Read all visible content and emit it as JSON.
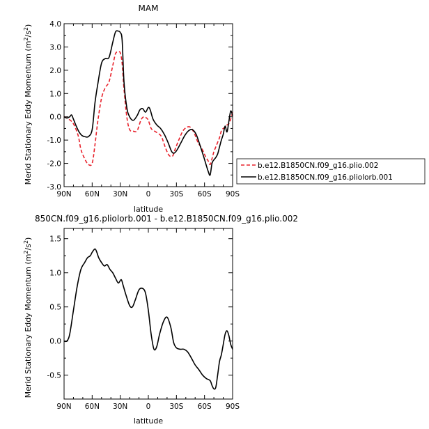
{
  "figure": {
    "top_title": "MAM",
    "bottom_title": "850CN.f09_g16.pliolorb.001 - b.e12.B1850CN.f09_g16.plio.002"
  },
  "chart_data": [
    {
      "type": "line",
      "title": "MAM",
      "xlabel": "latitude",
      "ylabel": "Merid Stationary Eddy Momentum (m²/s²)",
      "xlim": [
        90,
        -90
      ],
      "ylim": [
        -3.0,
        4.0
      ],
      "x_ticks": [
        90,
        60,
        30,
        0,
        -30,
        -60,
        -90
      ],
      "x_tick_labels": [
        "90N",
        "60N",
        "30N",
        "0",
        "30S",
        "60S",
        "90S"
      ],
      "y_ticks": [
        -3.0,
        -2.0,
        -1.0,
        0.0,
        1.0,
        2.0,
        3.0,
        4.0
      ],
      "y_tick_labels": [
        "-3.0",
        "-2.0",
        "-1.0",
        "0.0",
        "1.0",
        "2.0",
        "3.0",
        "4.0"
      ],
      "grid": false,
      "legend_position": "outside-right",
      "series": [
        {
          "name": "b.e12.B1850CN.f09_g16.plio.002",
          "color": "#e8202a",
          "dash": "dashed",
          "x": [
            90,
            85,
            80,
            75,
            72,
            68,
            64,
            60,
            57,
            54,
            50,
            46,
            42,
            38,
            35,
            32,
            30,
            28,
            26,
            23,
            20,
            16,
            12,
            8,
            5,
            2,
            0,
            -3,
            -6,
            -10,
            -14,
            -18,
            -22,
            -26,
            -29,
            -33,
            -37,
            -41,
            -45,
            -49,
            -53,
            -57,
            -61,
            -64,
            -66,
            -68,
            -70,
            -72,
            -74,
            -76,
            -78,
            -80,
            -82,
            -84,
            -86,
            -88,
            -90
          ],
          "y": [
            0.0,
            -0.1,
            -0.3,
            -0.8,
            -1.4,
            -1.8,
            -2.05,
            -2.0,
            -1.2,
            -0.2,
            0.8,
            1.25,
            1.5,
            2.2,
            2.72,
            2.78,
            2.75,
            2.3,
            1.2,
            0.0,
            -0.55,
            -0.62,
            -0.6,
            -0.15,
            0.0,
            -0.05,
            -0.15,
            -0.5,
            -0.6,
            -0.7,
            -0.85,
            -1.3,
            -1.65,
            -1.68,
            -1.35,
            -0.95,
            -0.6,
            -0.45,
            -0.45,
            -0.7,
            -1.1,
            -1.35,
            -1.7,
            -1.9,
            -2.05,
            -1.8,
            -1.5,
            -1.3,
            -1.1,
            -0.9,
            -0.6,
            -0.5,
            -0.45,
            -0.35,
            -0.3,
            -0.1,
            0.2
          ]
        },
        {
          "name": "b.e12.B1850CN.f09_g16.pliolorb.001",
          "color": "#000000",
          "dash": "solid",
          "x": [
            90,
            87,
            84,
            82,
            80,
            77,
            74,
            71,
            68,
            64,
            60,
            57,
            54,
            50,
            46,
            42,
            38,
            35,
            32,
            30,
            28,
            26,
            23,
            20,
            16,
            12,
            9,
            6,
            3,
            0,
            -2,
            -5,
            -9,
            -13,
            -17,
            -21,
            -25,
            -28,
            -31,
            -35,
            -39,
            -43,
            -47,
            -51,
            -55,
            -59,
            -62,
            -64,
            -66,
            -68,
            -70,
            -72,
            -74,
            -76,
            -78,
            -80,
            -82,
            -84,
            -86,
            -88,
            -90
          ],
          "y": [
            0.0,
            -0.05,
            0.0,
            0.08,
            -0.1,
            -0.4,
            -0.65,
            -0.8,
            -0.85,
            -0.85,
            -0.55,
            0.6,
            1.4,
            2.3,
            2.5,
            2.55,
            3.2,
            3.65,
            3.68,
            3.62,
            3.3,
            1.5,
            0.4,
            0.0,
            -0.15,
            0.05,
            0.3,
            0.35,
            0.2,
            0.4,
            0.3,
            -0.1,
            -0.35,
            -0.5,
            -0.75,
            -1.1,
            -1.5,
            -1.55,
            -1.4,
            -1.1,
            -0.8,
            -0.6,
            -0.55,
            -0.75,
            -1.2,
            -1.7,
            -2.1,
            -2.35,
            -2.5,
            -2.0,
            -1.85,
            -1.75,
            -1.6,
            -1.3,
            -1.0,
            -0.75,
            -0.4,
            -0.65,
            -0.2,
            0.25,
            0.05
          ]
        }
      ]
    },
    {
      "type": "line",
      "title": "850CN.f09_g16.pliolorb.001 - b.e12.B1850CN.f09_g16.plio.002",
      "xlabel": "latitude",
      "ylabel": "Merid Stationary Eddy Momentum (m²/s²)",
      "xlim": [
        90,
        -90
      ],
      "ylim": [
        -0.85,
        1.65
      ],
      "x_ticks": [
        90,
        60,
        30,
        0,
        -30,
        -60,
        -90
      ],
      "x_tick_labels": [
        "90N",
        "60N",
        "30N",
        "0",
        "30S",
        "60S",
        "90S"
      ],
      "y_ticks": [
        -0.5,
        0.0,
        0.5,
        1.0,
        1.5
      ],
      "y_tick_labels": [
        "-0.5",
        "0.0",
        "0.5",
        "1.0",
        "1.5"
      ],
      "grid": false,
      "series": [
        {
          "color": "#000000",
          "dash": "solid",
          "x": [
            90,
            87,
            84,
            80,
            76,
            72,
            68,
            65,
            62,
            60,
            57,
            55,
            53,
            50,
            47,
            44,
            41,
            38,
            35,
            32,
            29,
            27,
            24,
            20,
            17,
            14,
            10,
            6,
            3,
            0,
            -3,
            -6,
            -9,
            -12,
            -16,
            -20,
            -24,
            -27,
            -30,
            -34,
            -38,
            -42,
            -46,
            -50,
            -54,
            -58,
            -62,
            -66,
            -68,
            -70,
            -72,
            -74,
            -76,
            -78,
            -80,
            -82,
            -84,
            -86,
            -88,
            -90
          ],
          "y": [
            0.0,
            0.0,
            0.1,
            0.45,
            0.8,
            1.05,
            1.15,
            1.22,
            1.25,
            1.3,
            1.35,
            1.3,
            1.22,
            1.15,
            1.1,
            1.12,
            1.05,
            1.0,
            0.92,
            0.85,
            0.9,
            0.82,
            0.68,
            0.52,
            0.5,
            0.6,
            0.75,
            0.77,
            0.7,
            0.45,
            0.1,
            -0.12,
            -0.08,
            0.1,
            0.28,
            0.35,
            0.2,
            -0.02,
            -0.1,
            -0.12,
            -0.12,
            -0.16,
            -0.25,
            -0.35,
            -0.42,
            -0.5,
            -0.55,
            -0.58,
            -0.65,
            -0.7,
            -0.68,
            -0.5,
            -0.3,
            -0.2,
            -0.05,
            0.1,
            0.15,
            0.08,
            -0.05,
            -0.12
          ]
        }
      ]
    }
  ]
}
